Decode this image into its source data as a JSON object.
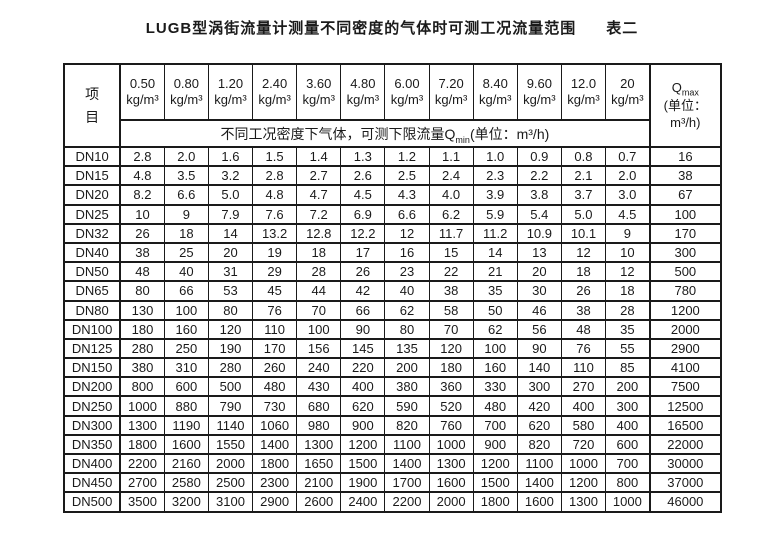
{
  "colors": {
    "text": "#1a1a1a",
    "border": "#1a1a1a",
    "background": "#ffffff"
  },
  "title": {
    "main": "LUGB型涡街流量计测量不同密度的气体时可测工况流量范围",
    "table_label": "表二"
  },
  "table": {
    "item_header": "项目",
    "density_columns": [
      {
        "value": "0.50",
        "unit": "kg/m³"
      },
      {
        "value": "0.80",
        "unit": "kg/m³"
      },
      {
        "value": "1.20",
        "unit": "kg/m³"
      },
      {
        "value": "2.40",
        "unit": "kg/m³"
      },
      {
        "value": "3.60",
        "unit": "kg/m³"
      },
      {
        "value": "4.80",
        "unit": "kg/m³"
      },
      {
        "value": "6.00",
        "unit": "kg/m³"
      },
      {
        "value": "7.20",
        "unit": "kg/m³"
      },
      {
        "value": "8.40",
        "unit": "kg/m³"
      },
      {
        "value": "9.60",
        "unit": "kg/m³"
      },
      {
        "value": "12.0",
        "unit": "kg/m³"
      },
      {
        "value": "20",
        "unit": "kg/m³"
      }
    ],
    "qmin_header": {
      "prefix": "不同工况密度下气体，可测下限流量Q",
      "sub": "min",
      "suffix": "(单位：m³/h)"
    },
    "qmax_header": {
      "q": "Q",
      "sub": "max",
      "line2": "(单位：",
      "line3": "m³/h)"
    },
    "rows": [
      {
        "dn": "DN10",
        "qmin": [
          "2.8",
          "2.0",
          "1.6",
          "1.5",
          "1.4",
          "1.3",
          "1.2",
          "1.1",
          "1.0",
          "0.9",
          "0.8",
          "0.7"
        ],
        "qmax": "16"
      },
      {
        "dn": "DN15",
        "qmin": [
          "4.8",
          "3.5",
          "3.2",
          "2.8",
          "2.7",
          "2.6",
          "2.5",
          "2.4",
          "2.3",
          "2.2",
          "2.1",
          "2.0"
        ],
        "qmax": "38"
      },
      {
        "dn": "DN20",
        "qmin": [
          "8.2",
          "6.6",
          "5.0",
          "4.8",
          "4.7",
          "4.5",
          "4.3",
          "4.0",
          "3.9",
          "3.8",
          "3.7",
          "3.0"
        ],
        "qmax": "67"
      },
      {
        "dn": "DN25",
        "qmin": [
          "10",
          "9",
          "7.9",
          "7.6",
          "7.2",
          "6.9",
          "6.6",
          "6.2",
          "5.9",
          "5.4",
          "5.0",
          "4.5"
        ],
        "qmax": "100"
      },
      {
        "dn": "DN32",
        "qmin": [
          "26",
          "18",
          "14",
          "13.2",
          "12.8",
          "12.2",
          "12",
          "11.7",
          "11.2",
          "10.9",
          "10.1",
          "9"
        ],
        "qmax": "170"
      },
      {
        "dn": "DN40",
        "qmin": [
          "38",
          "25",
          "20",
          "19",
          "18",
          "17",
          "16",
          "15",
          "14",
          "13",
          "12",
          "10"
        ],
        "qmax": "300"
      },
      {
        "dn": "DN50",
        "qmin": [
          "48",
          "40",
          "31",
          "29",
          "28",
          "26",
          "23",
          "22",
          "21",
          "20",
          "18",
          "12"
        ],
        "qmax": "500"
      },
      {
        "dn": "DN65",
        "qmin": [
          "80",
          "66",
          "53",
          "45",
          "44",
          "42",
          "40",
          "38",
          "35",
          "30",
          "26",
          "18"
        ],
        "qmax": "780"
      },
      {
        "dn": "DN80",
        "qmin": [
          "130",
          "100",
          "80",
          "76",
          "70",
          "66",
          "62",
          "58",
          "50",
          "46",
          "38",
          "28"
        ],
        "qmax": "1200"
      },
      {
        "dn": "DN100",
        "qmin": [
          "180",
          "160",
          "120",
          "110",
          "100",
          "90",
          "80",
          "70",
          "62",
          "56",
          "48",
          "35"
        ],
        "qmax": "2000"
      },
      {
        "dn": "DN125",
        "qmin": [
          "280",
          "250",
          "190",
          "170",
          "156",
          "145",
          "135",
          "120",
          "100",
          "90",
          "76",
          "55"
        ],
        "qmax": "2900"
      },
      {
        "dn": "DN150",
        "qmin": [
          "380",
          "310",
          "280",
          "260",
          "240",
          "220",
          "200",
          "180",
          "160",
          "140",
          "110",
          "85"
        ],
        "qmax": "4100"
      },
      {
        "dn": "DN200",
        "qmin": [
          "800",
          "600",
          "500",
          "480",
          "430",
          "400",
          "380",
          "360",
          "330",
          "300",
          "270",
          "200"
        ],
        "qmax": "7500"
      },
      {
        "dn": "DN250",
        "qmin": [
          "1000",
          "880",
          "790",
          "730",
          "680",
          "620",
          "590",
          "520",
          "480",
          "420",
          "400",
          "300"
        ],
        "qmax": "12500"
      },
      {
        "dn": "DN300",
        "qmin": [
          "1300",
          "1190",
          "1140",
          "1060",
          "980",
          "900",
          "820",
          "760",
          "700",
          "620",
          "580",
          "400"
        ],
        "qmax": "16500"
      },
      {
        "dn": "DN350",
        "qmin": [
          "1800",
          "1600",
          "1550",
          "1400",
          "1300",
          "1200",
          "1100",
          "1000",
          "900",
          "820",
          "720",
          "600"
        ],
        "qmax": "22000"
      },
      {
        "dn": "DN400",
        "qmin": [
          "2200",
          "2160",
          "2000",
          "1800",
          "1650",
          "1500",
          "1400",
          "1300",
          "1200",
          "1100",
          "1000",
          "700"
        ],
        "qmax": "30000"
      },
      {
        "dn": "DN450",
        "qmin": [
          "2700",
          "2580",
          "2500",
          "2300",
          "2100",
          "1900",
          "1700",
          "1600",
          "1500",
          "1400",
          "1200",
          "800"
        ],
        "qmax": "37000"
      },
      {
        "dn": "DN500",
        "qmin": [
          "3500",
          "3200",
          "3100",
          "2900",
          "2600",
          "2400",
          "2200",
          "2000",
          "1800",
          "1600",
          "1300",
          "1000"
        ],
        "qmax": "46000"
      }
    ]
  }
}
